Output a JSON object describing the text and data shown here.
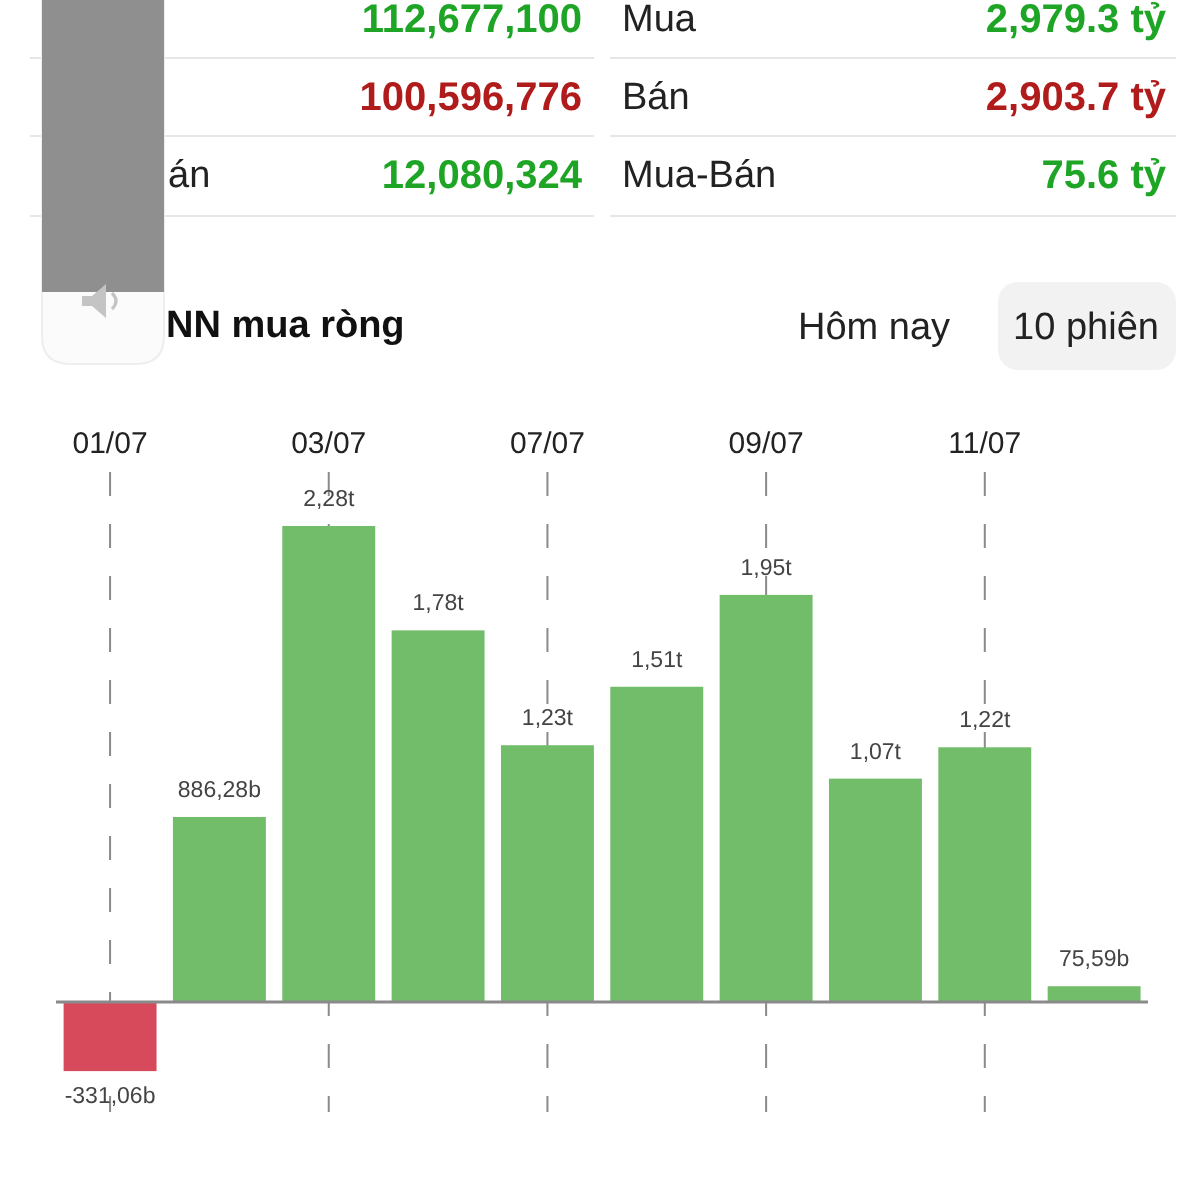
{
  "chart_data": {
    "type": "bar",
    "title": "NN mua ròng",
    "categories": [
      "01/07",
      null,
      "03/07",
      null,
      "07/07",
      null,
      "09/07",
      null,
      "11/07",
      null
    ],
    "values": [
      -331060000000,
      886280000000,
      2280000000000,
      1780000000000,
      1230000000000,
      1510000000000,
      1950000000000,
      1070000000000,
      1220000000000,
      75590000000
    ],
    "colors": [
      "#d64a5c",
      "#72bd6a",
      "#72bd6a",
      "#72bd6a",
      "#72bd6a",
      "#72bd6a",
      "#72bd6a",
      "#72bd6a",
      "#72bd6a",
      "#72bd6a"
    ],
    "value_labels": [
      "-331,06b",
      "886,28b",
      "2,28t",
      "1,78t",
      "1,23t",
      "1,51t",
      "1,95t",
      "1,07t",
      "1,22t",
      "75,59b"
    ],
    "grid": "x",
    "annotations": [
      "112,677,100",
      "Mua",
      "2,979.3 tỷ",
      "100,596,776",
      "Bán",
      "2,903.7 tỷ",
      "án",
      "12,080,324",
      "Mua-Bán",
      "75.6 tỷ",
      "Hôm nay",
      "10 phiên"
    ]
  }
}
